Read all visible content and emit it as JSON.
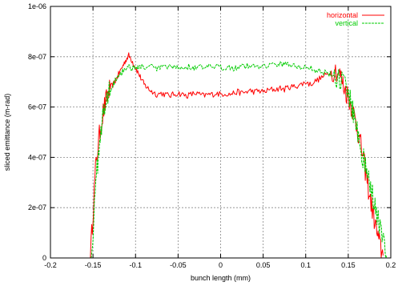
{
  "chart_data": {
    "type": "line",
    "title": "",
    "xlabel": "bunch length (mm)",
    "ylabel": "sliced emittance (m-rad)",
    "xlim": [
      -0.2,
      0.2
    ],
    "ylim": [
      0,
      1e-06
    ],
    "grid": true,
    "legend_position": "top-right",
    "x_ticks": [
      -0.2,
      -0.15,
      -0.1,
      -0.05,
      0,
      0.05,
      0.1,
      0.15,
      0.2
    ],
    "x_tick_labels": [
      "-0.2",
      "-0.15",
      "-0.1",
      "-0.05",
      "0",
      "0.05",
      "0.1",
      "0.15",
      "0.2"
    ],
    "y_ticks": [
      0,
      2e-07,
      4e-07,
      6e-07,
      8e-07,
      1e-06
    ],
    "y_tick_labels": [
      "0",
      "2e-07",
      "4e-07",
      "6e-07",
      "8e-07",
      "1e-06"
    ],
    "series": [
      {
        "name": "horizontal",
        "color": "#ff0000",
        "dash": "solid",
        "x": [
          -0.153,
          -0.15,
          -0.147,
          -0.144,
          -0.141,
          -0.138,
          -0.135,
          -0.132,
          -0.129,
          -0.126,
          -0.123,
          -0.12,
          -0.117,
          -0.114,
          -0.111,
          -0.108,
          -0.105,
          -0.102,
          -0.099,
          -0.096,
          -0.093,
          -0.09,
          -0.087,
          -0.084,
          -0.08,
          -0.075,
          -0.07,
          -0.065,
          -0.06,
          -0.055,
          -0.05,
          -0.045,
          -0.04,
          -0.035,
          -0.03,
          -0.025,
          -0.02,
          -0.015,
          -0.01,
          -0.005,
          0.0,
          0.005,
          0.01,
          0.015,
          0.02,
          0.025,
          0.03,
          0.035,
          0.04,
          0.045,
          0.05,
          0.055,
          0.06,
          0.065,
          0.07,
          0.075,
          0.08,
          0.085,
          0.09,
          0.095,
          0.1,
          0.105,
          0.11,
          0.115,
          0.12,
          0.125,
          0.13,
          0.135,
          0.14,
          0.143,
          0.146,
          0.149,
          0.152,
          0.155,
          0.158,
          0.161,
          0.164,
          0.167,
          0.17,
          0.173,
          0.176,
          0.179,
          0.182,
          0.185,
          0.188,
          0.191
        ],
        "y": [
          5e-09,
          1.8e-07,
          3.5e-07,
          4.5e-07,
          5.2e-07,
          5.8e-07,
          6.2e-07,
          6.6e-07,
          6.8e-07,
          6.9e-07,
          7.1e-07,
          7.3e-07,
          7.5e-07,
          7.7e-07,
          7.9e-07,
          8.05e-07,
          7.9e-07,
          7.7e-07,
          7.5e-07,
          7.3e-07,
          7.1e-07,
          6.9e-07,
          6.8e-07,
          6.7e-07,
          6.6e-07,
          6.5e-07,
          6.55e-07,
          6.5e-07,
          6.45e-07,
          6.5e-07,
          6.55e-07,
          6.5e-07,
          6.45e-07,
          6.5e-07,
          6.55e-07,
          6.5e-07,
          6.45e-07,
          6.5e-07,
          6.5e-07,
          6.55e-07,
          6.5e-07,
          6.55e-07,
          6.5e-07,
          6.55e-07,
          6.6e-07,
          6.55e-07,
          6.6e-07,
          6.65e-07,
          6.6e-07,
          6.65e-07,
          6.6e-07,
          6.65e-07,
          6.7e-07,
          6.7e-07,
          6.75e-07,
          6.7e-07,
          6.8e-07,
          6.8e-07,
          6.85e-07,
          6.9e-07,
          7e-07,
          6.9e-07,
          7e-07,
          7.1e-07,
          7.2e-07,
          7.3e-07,
          7.4e-07,
          7.5e-07,
          7.3e-07,
          7e-07,
          6.7e-07,
          6.5e-07,
          6.2e-07,
          5.9e-07,
          5.5e-07,
          5.1e-07,
          4.6e-07,
          4.1e-07,
          3.5e-07,
          2.9e-07,
          2.3e-07,
          1.8e-07,
          1.3e-07,
          8e-08,
          4e-08,
          1e-08
        ]
      },
      {
        "name": "vertical",
        "color": "#00cc00",
        "dash": "dashed",
        "x": [
          -0.152,
          -0.149,
          -0.146,
          -0.143,
          -0.14,
          -0.137,
          -0.134,
          -0.131,
          -0.128,
          -0.125,
          -0.122,
          -0.119,
          -0.116,
          -0.113,
          -0.11,
          -0.107,
          -0.104,
          -0.101,
          -0.098,
          -0.095,
          -0.09,
          -0.085,
          -0.08,
          -0.075,
          -0.07,
          -0.065,
          -0.06,
          -0.055,
          -0.05,
          -0.045,
          -0.04,
          -0.035,
          -0.03,
          -0.025,
          -0.02,
          -0.015,
          -0.01,
          -0.005,
          0.0,
          0.005,
          0.01,
          0.015,
          0.02,
          0.025,
          0.03,
          0.035,
          0.04,
          0.045,
          0.05,
          0.055,
          0.06,
          0.065,
          0.07,
          0.075,
          0.08,
          0.085,
          0.09,
          0.095,
          0.1,
          0.105,
          0.11,
          0.115,
          0.12,
          0.125,
          0.13,
          0.135,
          0.14,
          0.145,
          0.15,
          0.153,
          0.156,
          0.159,
          0.162,
          0.165,
          0.168,
          0.171,
          0.174,
          0.177,
          0.18,
          0.183,
          0.186,
          0.189,
          0.192,
          0.195
        ],
        "y": [
          5e-09,
          1.5e-07,
          3.2e-07,
          4.4e-07,
          5.3e-07,
          5.9e-07,
          6.3e-07,
          6.6e-07,
          6.8e-07,
          7e-07,
          7.2e-07,
          7.3e-07,
          7.4e-07,
          7.5e-07,
          7.6e-07,
          7.6e-07,
          7.55e-07,
          7.6e-07,
          7.55e-07,
          7.6e-07,
          7.6e-07,
          7.55e-07,
          7.6e-07,
          7.5e-07,
          7.6e-07,
          7.55e-07,
          7.6e-07,
          7.55e-07,
          7.6e-07,
          7.55e-07,
          7.6e-07,
          7.6e-07,
          7.55e-07,
          7.6e-07,
          7.55e-07,
          7.6e-07,
          7.55e-07,
          7.6e-07,
          7.55e-07,
          7.6e-07,
          7.6e-07,
          7.55e-07,
          7.6e-07,
          7.6e-07,
          7.65e-07,
          7.6e-07,
          7.65e-07,
          7.6e-07,
          7.7e-07,
          7.65e-07,
          7.7e-07,
          7.65e-07,
          7.7e-07,
          7.75e-07,
          7.7e-07,
          7.65e-07,
          7.6e-07,
          7.55e-07,
          7.6e-07,
          7.55e-07,
          7.5e-07,
          7.45e-07,
          7.4e-07,
          7.35e-07,
          7.3e-07,
          7.2e-07,
          7.1e-07,
          6.9e-07,
          6.6e-07,
          6.2e-07,
          5.8e-07,
          5.3e-07,
          4.9e-07,
          4.4e-07,
          3.9e-07,
          3.5e-07,
          3.1e-07,
          2.7e-07,
          2.3e-07,
          1.9e-07,
          1.4e-07,
          9e-08,
          5e-08,
          1e-08
        ]
      }
    ]
  }
}
